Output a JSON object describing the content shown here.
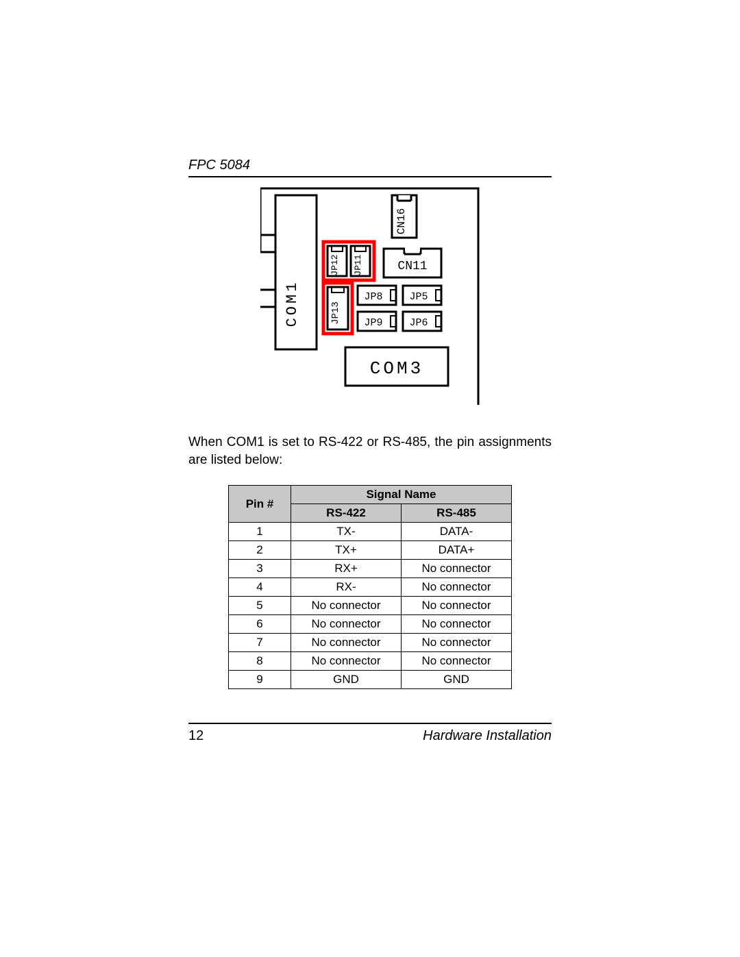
{
  "header": {
    "title": "FPC 5084"
  },
  "diagram": {
    "stroke": "#000000",
    "highlight": "#ff0000",
    "highlight_width": 4,
    "labels": {
      "com1": "COM1",
      "com3": "COM3",
      "cn16": "CN16",
      "cn11": "CN11",
      "jp12": "JP12",
      "jp11": "JP11",
      "jp13": "JP13",
      "jp8": "JP8",
      "jp5": "JP5",
      "jp9": "JP9",
      "jp6": "JP6"
    }
  },
  "body_text": "When COM1 is set to RS-422 or RS-485, the pin assignments are listed below:",
  "table": {
    "header_bg": "#c8c8c8",
    "pin_header": "Pin #",
    "signal_header": "Signal Name",
    "columns": [
      "RS-422",
      "RS-485"
    ],
    "rows": [
      {
        "pin": "1",
        "rs422": "TX-",
        "rs485": "DATA-"
      },
      {
        "pin": "2",
        "rs422": "TX+",
        "rs485": "DATA+"
      },
      {
        "pin": "3",
        "rs422": "RX+",
        "rs485": "No connector"
      },
      {
        "pin": "4",
        "rs422": "RX-",
        "rs485": "No connector"
      },
      {
        "pin": "5",
        "rs422": "No connector",
        "rs485": "No connector"
      },
      {
        "pin": "6",
        "rs422": "No connector",
        "rs485": "No connector"
      },
      {
        "pin": "7",
        "rs422": "No connector",
        "rs485": "No connector"
      },
      {
        "pin": "8",
        "rs422": "No connector",
        "rs485": "No connector"
      },
      {
        "pin": "9",
        "rs422": "GND",
        "rs485": "GND"
      }
    ]
  },
  "footer": {
    "page_number": "12",
    "section": "Hardware Installation"
  }
}
